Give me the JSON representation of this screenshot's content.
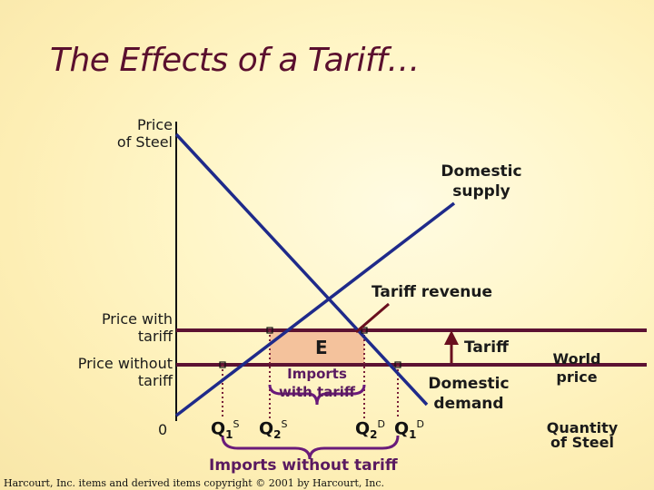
{
  "title": "The Effects of a Tariff…",
  "axes": {
    "y_label_line1": "Price",
    "y_label_line2": "of Steel",
    "x_label_line1": "Quantity",
    "x_label_line2": "of Steel",
    "origin": "0"
  },
  "prices": {
    "with_tariff_line1": "Price with",
    "with_tariff_line2": "tariff",
    "without_tariff_line1": "Price without",
    "without_tariff_line2": "tariff"
  },
  "curves": {
    "supply_line1": "Domestic",
    "supply_line2": "supply",
    "demand_line1": "Domestic",
    "demand_line2": "demand",
    "world_price_line1": "World",
    "world_price_line2": "price"
  },
  "annotations": {
    "tariff_revenue": "Tariff revenue",
    "tariff": "Tariff",
    "area_e": "E",
    "imports_with_tariff_line1": "Imports",
    "imports_with_tariff_line2": "with tariff",
    "imports_without_tariff": "Imports without tariff"
  },
  "quantities": {
    "q1s": {
      "base": "Q",
      "sub": "1",
      "sup": "S"
    },
    "q2s": {
      "base": "Q",
      "sub": "2",
      "sup": "S"
    },
    "q2d": {
      "base": "Q",
      "sub": "2",
      "sup": "D"
    },
    "q1d": {
      "base": "Q",
      "sub": "1",
      "sup": "D"
    }
  },
  "footer": "Harcourt, Inc. items and derived items copyright © 2001 by Harcourt, Inc.",
  "colors": {
    "curve_blue": "#1f2a8a",
    "price_line": "#5c1232",
    "title": "#5a0f2e",
    "tariff_revenue_fill": "#f4c29c",
    "brace_purple": "#6a1b7a",
    "arrow": "#6a0f1e"
  }
}
